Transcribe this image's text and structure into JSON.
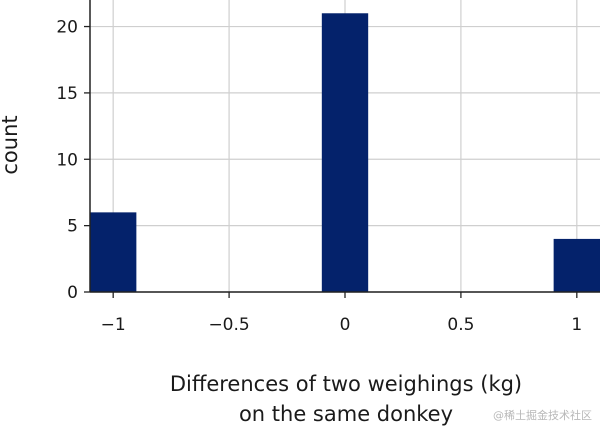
{
  "chart_data": {
    "type": "bar",
    "x_categories": [
      -1,
      0,
      1
    ],
    "values": [
      6,
      21,
      4
    ],
    "bar_color": "#04226b",
    "xlim": [
      -1.1,
      1.1
    ],
    "ylim": [
      0,
      22
    ],
    "x_ticks": [
      -1,
      -0.5,
      0,
      0.5,
      1
    ],
    "x_tick_labels": [
      "−1",
      "−0.5",
      "0",
      "0.5",
      "1"
    ],
    "y_ticks": [
      0,
      5,
      10,
      15,
      20
    ],
    "y_tick_labels": [
      "0",
      "5",
      "10",
      "15",
      "20"
    ],
    "xlabel_line1": "Differences of two weighings (kg)",
    "xlabel_line2": "on the same donkey",
    "ylabel": "count",
    "grid": true,
    "grid_color": "#cfcfcf"
  },
  "watermark": "@稀土掘金技术社区"
}
